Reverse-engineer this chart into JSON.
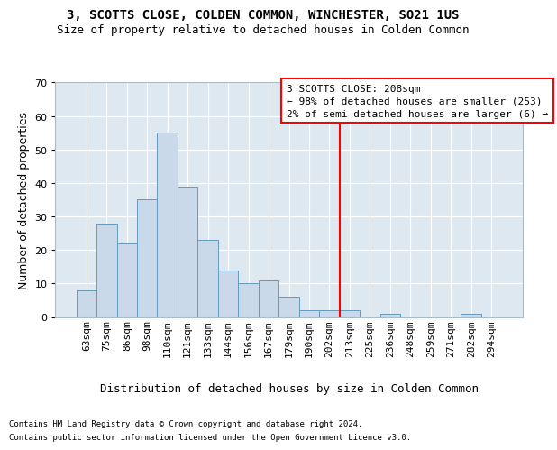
{
  "title": "3, SCOTTS CLOSE, COLDEN COMMON, WINCHESTER, SO21 1US",
  "subtitle": "Size of property relative to detached houses in Colden Common",
  "xlabel": "Distribution of detached houses by size in Colden Common",
  "ylabel": "Number of detached properties",
  "footer_line1": "Contains HM Land Registry data © Crown copyright and database right 2024.",
  "footer_line2": "Contains public sector information licensed under the Open Government Licence v3.0.",
  "bar_labels": [
    "63sqm",
    "75sqm",
    "86sqm",
    "98sqm",
    "110sqm",
    "121sqm",
    "133sqm",
    "144sqm",
    "156sqm",
    "167sqm",
    "179sqm",
    "190sqm",
    "202sqm",
    "213sqm",
    "225sqm",
    "236sqm",
    "248sqm",
    "259sqm",
    "271sqm",
    "282sqm",
    "294sqm"
  ],
  "bar_values": [
    8,
    28,
    22,
    35,
    55,
    39,
    23,
    14,
    10,
    11,
    6,
    2,
    2,
    2,
    0,
    1,
    0,
    0,
    0,
    1,
    0
  ],
  "bar_color": "#c9d9ea",
  "bar_edge_color": "#6699bb",
  "plot_bg_color": "#dde8f0",
  "fig_bg_color": "#ffffff",
  "ylim": [
    0,
    70
  ],
  "yticks": [
    0,
    10,
    20,
    30,
    40,
    50,
    60,
    70
  ],
  "vline_x": 12.5,
  "property_label": "3 SCOTTS CLOSE: 208sqm",
  "annotation_line1": "← 98% of detached houses are smaller (253)",
  "annotation_line2": "2% of semi-detached houses are larger (6) →",
  "title_fontsize": 10,
  "subtitle_fontsize": 9,
  "ylabel_fontsize": 9,
  "xlabel_fontsize": 9,
  "tick_fontsize": 8,
  "annot_fontsize": 8,
  "footer_fontsize": 6.5
}
